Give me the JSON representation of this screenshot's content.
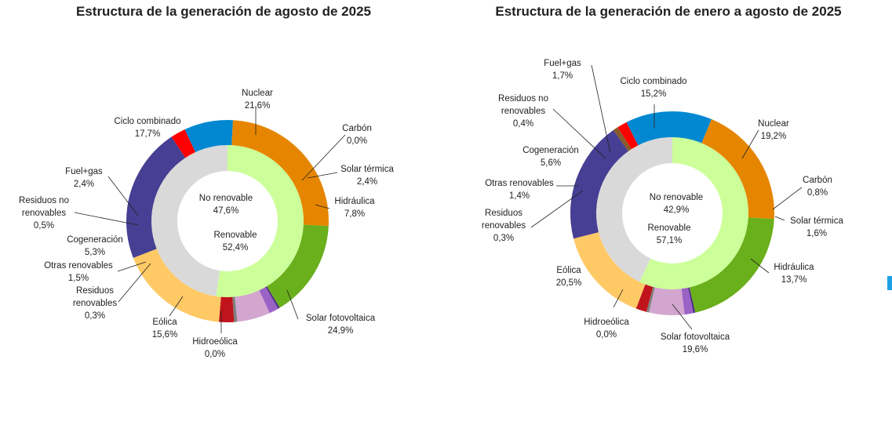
{
  "colors": {
    "nuclear": "#463F93",
    "carbon": "#8B5A2B",
    "solar_termica": "#FF0000",
    "hidraulica": "#0288D1",
    "solar_fotovoltaica": "#E68600",
    "hidroeolica": "#1F6F3F",
    "eolica": "#6AAF1C",
    "residuos_renovables": "#4D2E83",
    "otras_renovables": "#9A63C6",
    "cogeneracion": "#D2A6CE",
    "residuos_no_renovables": "#7F7F7F",
    "fuel_gas": "#C0141C",
    "ciclo_combinado": "#FFC966",
    "no_renovable": "#D9D9D9",
    "renovable": "#CCFF99",
    "accent": "#1EA0E6"
  },
  "chart_data": [
    {
      "type": "pie",
      "title": "Estructura de la generación de agosto de 2025",
      "outer": [
        {
          "key": "nuclear",
          "label": "Nuclear",
          "value": 21.6,
          "value_text": "21,6%"
        },
        {
          "key": "carbon",
          "label": "Carbón",
          "value": 0.0,
          "value_text": "0,0%"
        },
        {
          "key": "solar_termica",
          "label": "Solar térmica",
          "value": 2.4,
          "value_text": "2,4%"
        },
        {
          "key": "hidraulica",
          "label": "Hidráulica",
          "value": 7.8,
          "value_text": "7,8%"
        },
        {
          "key": "solar_fotovoltaica",
          "label": "Solar fotovoltaica",
          "value": 24.9,
          "value_text": "24,9%"
        },
        {
          "key": "hidroeolica",
          "label": "Hidroeólica",
          "value": 0.0,
          "value_text": "0,0%"
        },
        {
          "key": "eolica",
          "label": "Eólica",
          "value": 15.6,
          "value_text": "15,6%"
        },
        {
          "key": "residuos_renovables",
          "label": "Residuos renovables",
          "value": 0.3,
          "value_text": "0,3%"
        },
        {
          "key": "otras_renovables",
          "label": "Otras renovables",
          "value": 1.5,
          "value_text": "1,5%"
        },
        {
          "key": "cogeneracion",
          "label": "Cogeneración",
          "value": 5.3,
          "value_text": "5,3%"
        },
        {
          "key": "residuos_no_renovables",
          "label": "Residuos no renovables",
          "value": 0.5,
          "value_text": "0,5%"
        },
        {
          "key": "fuel_gas",
          "label": "Fuel+gas",
          "value": 2.4,
          "value_text": "2,4%"
        },
        {
          "key": "ciclo_combinado",
          "label": "Ciclo combinado",
          "value": 17.7,
          "value_text": "17,7%"
        }
      ],
      "inner": [
        {
          "key": "no_renovable",
          "label": "No renovable",
          "value": 47.6,
          "value_text": "47,6%"
        },
        {
          "key": "renovable",
          "label": "Renovable",
          "value": 52.4,
          "value_text": "52,4%"
        }
      ]
    },
    {
      "type": "pie",
      "title": "Estructura de la generación de enero a agosto de 2025",
      "outer": [
        {
          "key": "nuclear",
          "label": "Nuclear",
          "value": 19.2,
          "value_text": "19,2%"
        },
        {
          "key": "carbon",
          "label": "Carbón",
          "value": 0.8,
          "value_text": "0,8%"
        },
        {
          "key": "solar_termica",
          "label": "Solar térmica",
          "value": 1.6,
          "value_text": "1,6%"
        },
        {
          "key": "hidraulica",
          "label": "Hidráulica",
          "value": 13.7,
          "value_text": "13,7%"
        },
        {
          "key": "solar_fotovoltaica",
          "label": "Solar fotovoltaica",
          "value": 19.6,
          "value_text": "19,6%"
        },
        {
          "key": "hidroeolica",
          "label": "Hidroeólica",
          "value": 0.0,
          "value_text": "0,0%"
        },
        {
          "key": "eolica",
          "label": "Eólica",
          "value": 20.5,
          "value_text": "20,5%"
        },
        {
          "key": "residuos_renovables",
          "label": "Residuos renovables",
          "value": 0.3,
          "value_text": "0,3%"
        },
        {
          "key": "otras_renovables",
          "label": "Otras renovables",
          "value": 1.4,
          "value_text": "1,4%"
        },
        {
          "key": "cogeneracion",
          "label": "Cogeneración",
          "value": 5.6,
          "value_text": "5,6%"
        },
        {
          "key": "residuos_no_renovables",
          "label": "Residuos no renovables",
          "value": 0.4,
          "value_text": "0,4%"
        },
        {
          "key": "fuel_gas",
          "label": "Fuel+gas",
          "value": 1.7,
          "value_text": "1,7%"
        },
        {
          "key": "ciclo_combinado",
          "label": "Ciclo combinado",
          "value": 15.2,
          "value_text": "15,2%"
        }
      ],
      "inner": [
        {
          "key": "no_renovable",
          "label": "No renovable",
          "value": 42.9,
          "value_text": "42,9%"
        },
        {
          "key": "renovable",
          "label": "Renovable",
          "value": 57.1,
          "value_text": "57,1%"
        }
      ]
    }
  ]
}
